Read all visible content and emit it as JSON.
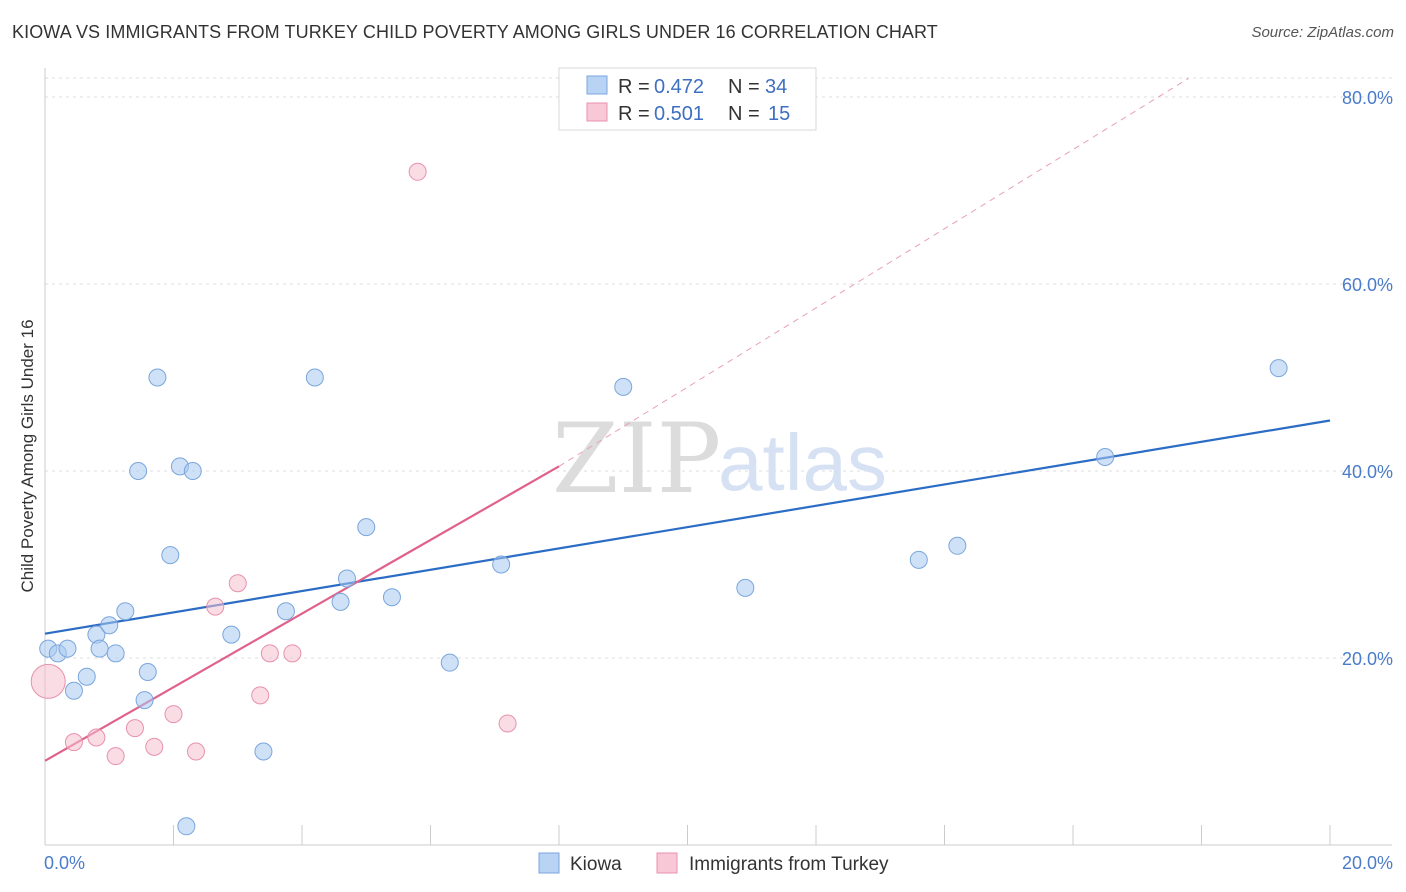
{
  "header": {
    "title": "KIOWA VS IMMIGRANTS FROM TURKEY CHILD POVERTY AMONG GIRLS UNDER 16 CORRELATION CHART",
    "source": "Source: ZipAtlas.com"
  },
  "watermark": {
    "zip": "ZIP",
    "atlas": "atlas"
  },
  "chart_data": {
    "type": "scatter",
    "title": "KIOWA VS IMMIGRANTS FROM TURKEY CHILD POVERTY AMONG GIRLS UNDER 16 CORRELATION CHART",
    "xlabel": "",
    "ylabel": "Child Poverty Among Girls Under 16",
    "xlim": [
      0,
      20
    ],
    "ylim": [
      0,
      82
    ],
    "x_tick_labels": [
      {
        "value": 0,
        "label": "0.0%"
      },
      {
        "value": 20,
        "label": "20.0%"
      }
    ],
    "y_tick_labels": [
      {
        "value": 20,
        "label": "20.0%"
      },
      {
        "value": 40,
        "label": "40.0%"
      },
      {
        "value": 60,
        "label": "60.0%"
      },
      {
        "value": 80,
        "label": "80.0%"
      }
    ],
    "legend": [
      {
        "name": "Kiowa",
        "r_label": "R =",
        "r": "0.472",
        "n_label": "N =",
        "n": "34"
      },
      {
        "name": "Immigrants from Turkey",
        "r_label": "R =",
        "r": "0.501",
        "n_label": "N =",
        "n": "15"
      }
    ],
    "series": [
      {
        "name": "Kiowa",
        "color": "#a8c8f0",
        "stroke": "#7aa6dc",
        "line_color": "#2b6cc4",
        "points": [
          {
            "x": 0.05,
            "y": 21.0
          },
          {
            "x": 0.2,
            "y": 20.5
          },
          {
            "x": 0.35,
            "y": 21.0
          },
          {
            "x": 0.45,
            "y": 16.5
          },
          {
            "x": 0.65,
            "y": 18.0
          },
          {
            "x": 0.8,
            "y": 22.5
          },
          {
            "x": 0.85,
            "y": 21.0
          },
          {
            "x": 1.0,
            "y": 23.5
          },
          {
            "x": 1.1,
            "y": 20.5
          },
          {
            "x": 1.25,
            "y": 25.0
          },
          {
            "x": 1.45,
            "y": 40.0
          },
          {
            "x": 1.55,
            "y": 15.5
          },
          {
            "x": 1.6,
            "y": 18.5
          },
          {
            "x": 1.75,
            "y": 50.0
          },
          {
            "x": 1.95,
            "y": 31.0
          },
          {
            "x": 2.1,
            "y": 40.5
          },
          {
            "x": 2.2,
            "y": 2.0
          },
          {
            "x": 2.3,
            "y": 40.0
          },
          {
            "x": 2.9,
            "y": 22.5
          },
          {
            "x": 3.4,
            "y": 10.0
          },
          {
            "x": 3.75,
            "y": 25.0
          },
          {
            "x": 4.2,
            "y": 50.0
          },
          {
            "x": 4.6,
            "y": 26.0
          },
          {
            "x": 4.7,
            "y": 28.5
          },
          {
            "x": 5.0,
            "y": 34.0
          },
          {
            "x": 5.4,
            "y": 26.5
          },
          {
            "x": 6.3,
            "y": 19.5
          },
          {
            "x": 7.1,
            "y": 30.0
          },
          {
            "x": 9.0,
            "y": 49.0
          },
          {
            "x": 10.9,
            "y": 27.5
          },
          {
            "x": 13.6,
            "y": 30.5
          },
          {
            "x": 14.2,
            "y": 32.0
          },
          {
            "x": 16.5,
            "y": 41.5
          },
          {
            "x": 19.2,
            "y": 51.0
          }
        ],
        "trend": {
          "x0": 0,
          "y0": 22.6,
          "x1": 20,
          "y1": 45.4
        }
      },
      {
        "name": "Immigrants from Turkey",
        "color": "#f5bfd0",
        "stroke": "#e891ad",
        "line_color": "#e0618a",
        "points": [
          {
            "x": 0.05,
            "y": 17.5,
            "large": true
          },
          {
            "x": 0.45,
            "y": 11.0
          },
          {
            "x": 0.8,
            "y": 11.5
          },
          {
            "x": 1.1,
            "y": 9.5
          },
          {
            "x": 1.4,
            "y": 12.5
          },
          {
            "x": 1.7,
            "y": 10.5
          },
          {
            "x": 2.0,
            "y": 14.0
          },
          {
            "x": 2.35,
            "y": 10.0
          },
          {
            "x": 2.65,
            "y": 25.5
          },
          {
            "x": 3.0,
            "y": 28.0
          },
          {
            "x": 3.35,
            "y": 16.0
          },
          {
            "x": 3.5,
            "y": 20.5
          },
          {
            "x": 3.85,
            "y": 20.5
          },
          {
            "x": 5.8,
            "y": 72.0
          },
          {
            "x": 7.2,
            "y": 13.0
          }
        ],
        "trend": {
          "x0": 0,
          "y0": 9.0,
          "x1": 8,
          "y1": 40.5
        },
        "trend_extension": {
          "x0": 8,
          "y0": 40.5,
          "x1": 17.8,
          "y1": 82
        }
      }
    ]
  }
}
